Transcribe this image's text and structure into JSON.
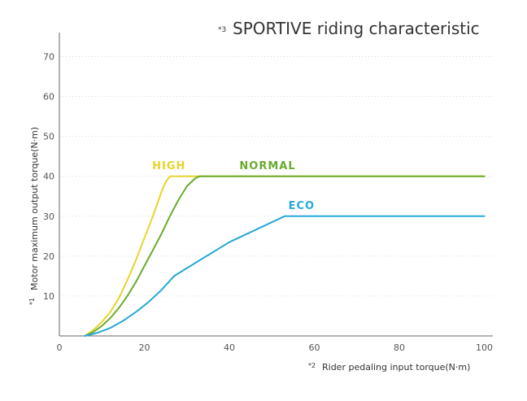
{
  "chart_data": {
    "type": "line",
    "title": "SPORTIVE riding characteristic",
    "title_note": "*3",
    "xlabel": "Rider pedaling input torque(N·m)",
    "xlabel_note": "*2",
    "ylabel": "Motor maximum output torque(N·m)",
    "ylabel_note": "*1",
    "xlim": [
      0,
      102
    ],
    "ylim": [
      0,
      76
    ],
    "x_ticks": [
      0,
      20,
      40,
      60,
      80,
      100
    ],
    "y_ticks": [
      10,
      20,
      30,
      40,
      50,
      60,
      70
    ],
    "grid": "horizontal",
    "series": [
      {
        "name": "HIGH",
        "color": "#e8d42c",
        "label_at": [
          25.8,
          41
        ],
        "x": [
          6,
          8,
          10,
          12,
          14,
          16,
          18,
          20,
          22,
          24,
          25,
          26,
          27,
          100
        ],
        "y": [
          0,
          1.5,
          3.5,
          6,
          9.5,
          14,
          19,
          24.5,
          30,
          36,
          38.5,
          40,
          40,
          40
        ]
      },
      {
        "name": "NORMAL",
        "color": "#6aab2e",
        "label_at": [
          49,
          41
        ],
        "x": [
          6,
          8,
          10,
          12,
          14,
          16,
          18,
          20,
          22,
          24,
          26,
          28,
          30,
          32,
          33,
          100
        ],
        "y": [
          0,
          1,
          2.5,
          4.5,
          7,
          10,
          13.5,
          17.5,
          21.5,
          25.5,
          30,
          34,
          37.5,
          39.5,
          40,
          40
        ]
      },
      {
        "name": "ECO",
        "color": "#26a8d9",
        "label_at": [
          57,
          31
        ],
        "x": [
          6,
          9,
          12,
          15,
          18,
          21,
          24,
          27,
          30,
          40,
          53,
          100
        ],
        "y": [
          0,
          0.8,
          2,
          3.8,
          6,
          8.5,
          11.5,
          15,
          17,
          23.5,
          30,
          30
        ]
      }
    ]
  }
}
